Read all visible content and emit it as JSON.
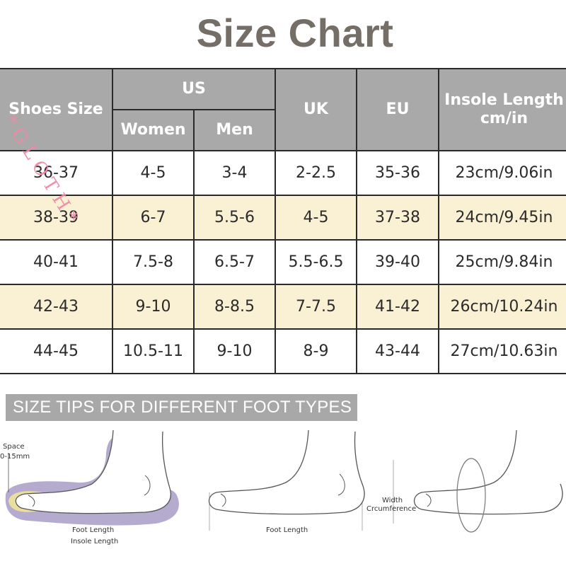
{
  "title": "Size Chart",
  "table": {
    "header": {
      "shoes_size": "Shoes Size",
      "us": "US",
      "women": "Women",
      "men": "Men",
      "uk": "UK",
      "eu": "EU",
      "insole_line1": "Insole Length",
      "insole_line2": "cm/in"
    },
    "rows": [
      {
        "size": "36-37",
        "women": "4-5",
        "men": "3-4",
        "uk": "2-2.5",
        "eu": "35-36",
        "insole": "23cm/9.06in"
      },
      {
        "size": "38-39",
        "women": "6-7",
        "men": "5.5-6",
        "uk": "4-5",
        "eu": "37-38",
        "insole": "24cm/9.45in"
      },
      {
        "size": "40-41",
        "women": "7.5-8",
        "men": "6.5-7",
        "uk": "5.5-6.5",
        "eu": "39-40",
        "insole": "25cm/9.84in"
      },
      {
        "size": "42-43",
        "women": "9-10",
        "men": "8-8.5",
        "uk": "7-7.5",
        "eu": "41-42",
        "insole": "26cm/10.24in"
      },
      {
        "size": "44-45",
        "women": "10.5-11",
        "men": "9-10",
        "uk": "8-9",
        "eu": "43-44",
        "insole": "27cm/10.63in"
      }
    ]
  },
  "watermark": "*GLOTH*",
  "tips_banner": "SIZE TIPS FOR DIFFERENT FOOT TYPES",
  "diagrams": {
    "space_label": "Space",
    "space_value": "0-15mm",
    "foot_length_1": "Foot Length",
    "insole_length": "Insole Length",
    "foot_length_2": "Foot Length",
    "width_label": "Width",
    "circumference_label": "Crcumference"
  },
  "colors": {
    "title": "#756e67",
    "header_bg": "#a9a9a9",
    "alt_row_bg": "#faf1d4",
    "watermark": "#f08aa6",
    "insole_purple": "#a79cc6"
  }
}
